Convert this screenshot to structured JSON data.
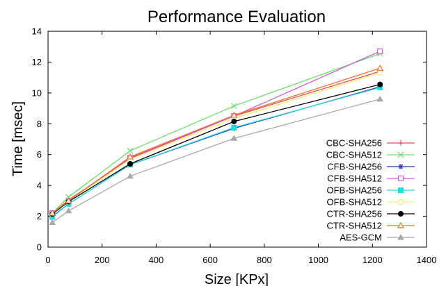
{
  "chart_data": {
    "type": "line",
    "title": "Performance Evaluation",
    "xlabel": "Size [KPx]",
    "ylabel": "Time [msec]",
    "xlim": [
      0,
      1400
    ],
    "ylim": [
      0,
      14
    ],
    "xticks": [
      0,
      200,
      400,
      600,
      800,
      1000,
      1200,
      1400
    ],
    "yticks": [
      0,
      2,
      4,
      6,
      8,
      10,
      12,
      14
    ],
    "grid": false,
    "legend_position": "bottom-right",
    "x": [
      16,
      76,
      304,
      688,
      1228
    ],
    "series": [
      {
        "name": "CBC-SHA256",
        "color": "#e05050",
        "marker": "plus",
        "values": [
          2.2,
          3.05,
          5.75,
          8.5,
          11.4
        ]
      },
      {
        "name": "CBC-SHA512",
        "color": "#66e066",
        "marker": "x",
        "values": [
          2.2,
          3.25,
          6.25,
          9.15,
          12.55
        ]
      },
      {
        "name": "CFB-SHA256",
        "color": "#2c2cb8",
        "marker": "asterisk",
        "values": [
          2.0,
          2.8,
          5.35,
          7.7,
          10.4
        ]
      },
      {
        "name": "CFB-SHA512",
        "color": "#d05ad8",
        "marker": "square",
        "values": [
          2.2,
          3.0,
          5.8,
          8.5,
          12.7
        ]
      },
      {
        "name": "OFB-SHA256",
        "color": "#22dddd",
        "marker": "fsquare",
        "values": [
          1.95,
          2.8,
          5.35,
          7.75,
          10.35
        ]
      },
      {
        "name": "OFB-SHA512",
        "color": "#f2ee6c",
        "marker": "circle",
        "values": [
          2.15,
          2.95,
          5.7,
          8.35,
          11.3
        ]
      },
      {
        "name": "CTR-SHA256",
        "color": "#000000",
        "marker": "fcircle",
        "values": [
          2.15,
          2.95,
          5.4,
          8.15,
          10.55
        ]
      },
      {
        "name": "CTR-SHA512",
        "color": "#f07030",
        "marker": "triangle",
        "values": [
          2.2,
          3.0,
          5.85,
          8.55,
          11.6
        ]
      },
      {
        "name": "AES-GCM",
        "color": "#a8a8a8",
        "marker": "ftriangle",
        "values": [
          1.6,
          2.35,
          4.6,
          7.05,
          9.6
        ]
      }
    ]
  }
}
